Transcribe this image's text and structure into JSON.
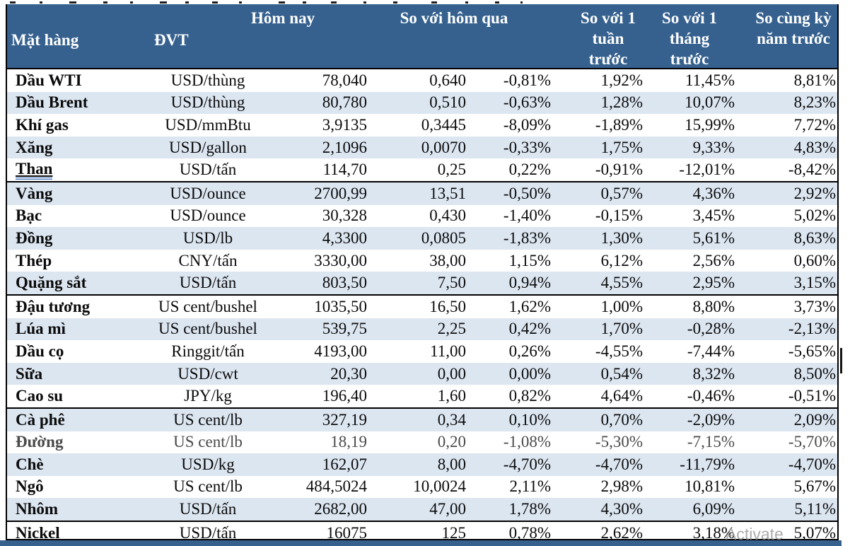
{
  "page": {
    "watermark": "Activate",
    "colors": {
      "header_bg": "#36618F",
      "stripe": "#DCE6F1",
      "border": "#000000",
      "underline_blue": "#3E6DB5",
      "muted_text": "#4a4a4a",
      "watermark_gray": "#9E9E9E"
    }
  },
  "table": {
    "headers": {
      "commodity": "Mặt hàng",
      "unit": "ĐVT",
      "today": "Hôm nay",
      "vs_yesterday": "So với hôm qua",
      "vs_week": "So với 1 tuần trước",
      "vs_month": "So với 1 tháng trước",
      "vs_year": "So cùng kỳ năm trước"
    },
    "rows": [
      {
        "name": "Dầu WTI",
        "unit": "USD/thùng",
        "today": "78,040",
        "change": "0,640",
        "change_pct": "-0,81%",
        "week_pct": "1,92%",
        "month_pct": "11,45%",
        "year_pct": "8,81%"
      },
      {
        "name": "Dầu Brent",
        "unit": "USD/thùng",
        "today": "80,780",
        "change": "0,510",
        "change_pct": "-0,63%",
        "week_pct": "1,28%",
        "month_pct": "10,07%",
        "year_pct": "8,23%"
      },
      {
        "name": "Khí gas",
        "unit": "USD/mmBtu",
        "today": "3,9135",
        "change": "0,3445",
        "change_pct": "-8,09%",
        "week_pct": "-1,89%",
        "month_pct": "15,99%",
        "year_pct": "7,72%"
      },
      {
        "name": "Xăng",
        "unit": "USD/gallon",
        "today": "2,1096",
        "change": "0,0070",
        "change_pct": "-0,33%",
        "week_pct": "1,75%",
        "month_pct": "9,33%",
        "year_pct": "4,83%"
      },
      {
        "name": "Than",
        "unit": "USD/tấn",
        "today": "114,70",
        "change": "0,25",
        "change_pct": "0,22%",
        "week_pct": "-0,91%",
        "month_pct": "-12,01%",
        "year_pct": "-8,42%",
        "underlined": true
      },
      {
        "name": "Vàng",
        "unit": "USD/ounce",
        "today": "2700,99",
        "change": "13,51",
        "change_pct": "-0,50%",
        "week_pct": "0,57%",
        "month_pct": "4,36%",
        "year_pct": "2,92%"
      },
      {
        "name": "Bạc",
        "unit": "USD/ounce",
        "today": "30,328",
        "change": "0,430",
        "change_pct": "-1,40%",
        "week_pct": "-0,15%",
        "month_pct": "3,45%",
        "year_pct": "5,02%"
      },
      {
        "name": "Đồng",
        "unit": "USD/lb",
        "today": "4,3300",
        "change": "0,0805",
        "change_pct": "-1,83%",
        "week_pct": "1,30%",
        "month_pct": "5,61%",
        "year_pct": "8,63%"
      },
      {
        "name": "Thép",
        "unit": "CNY/tấn",
        "today": "3330,00",
        "change": "38,00",
        "change_pct": "1,15%",
        "week_pct": "6,12%",
        "month_pct": "2,56%",
        "year_pct": "0,60%"
      },
      {
        "name": "Quặng sắt",
        "unit": "USD/tấn",
        "today": "803,50",
        "change": "7,50",
        "change_pct": "0,94%",
        "week_pct": "4,55%",
        "month_pct": "2,95%",
        "year_pct": "3,15%"
      },
      {
        "name": "Đậu tương",
        "unit": "US cent/bushel",
        "today": "1035,50",
        "change": "16,50",
        "change_pct": "1,62%",
        "week_pct": "1,00%",
        "month_pct": "8,80%",
        "year_pct": "3,73%"
      },
      {
        "name": "Lúa mì",
        "unit": "US cent/bushel",
        "today": "539,75",
        "change": "2,25",
        "change_pct": "0,42%",
        "week_pct": "1,70%",
        "month_pct": "-0,28%",
        "year_pct": "-2,13%"
      },
      {
        "name": "Dầu cọ",
        "unit": "Ringgit/tấn",
        "today": "4193,00",
        "change": "11,00",
        "change_pct": "0,26%",
        "week_pct": "-4,55%",
        "month_pct": "-7,44%",
        "year_pct": "-5,65%"
      },
      {
        "name": "Sữa",
        "unit": "USD/cwt",
        "today": "20,30",
        "change": "0,00",
        "change_pct": "0,00%",
        "week_pct": "0,54%",
        "month_pct": "8,32%",
        "year_pct": "8,50%"
      },
      {
        "name": "Cao su",
        "unit": "JPY/kg",
        "today": "196,40",
        "change": "1,60",
        "change_pct": "0,82%",
        "week_pct": "4,64%",
        "month_pct": "-0,46%",
        "year_pct": "-0,51%"
      },
      {
        "name": "Cà phê",
        "unit": "US cent/lb",
        "today": "327,19",
        "change": "0,34",
        "change_pct": "0,10%",
        "week_pct": "0,70%",
        "month_pct": "-2,09%",
        "year_pct": "2,09%"
      },
      {
        "name": "Đường",
        "unit": "US cent/lb",
        "today": "18,19",
        "change": "0,20",
        "change_pct": "-1,08%",
        "week_pct": "-5,30%",
        "month_pct": "-7,15%",
        "year_pct": "-5,70%",
        "muted": true
      },
      {
        "name": "Chè",
        "unit": "USD/kg",
        "today": "162,07",
        "change": "8,00",
        "change_pct": "-4,70%",
        "week_pct": "-4,70%",
        "month_pct": "-11,79%",
        "year_pct": "-4,70%"
      },
      {
        "name": "Ngô",
        "unit": "US cent/lb",
        "today": "484,5024",
        "change": "10,0024",
        "change_pct": "2,11%",
        "week_pct": "2,98%",
        "month_pct": "10,81%",
        "year_pct": "5,67%"
      },
      {
        "name": "Nhôm",
        "unit": "USD/tấn",
        "today": "2682,00",
        "change": "47,00",
        "change_pct": "1,78%",
        "week_pct": "4,30%",
        "month_pct": "6,09%",
        "year_pct": "5,11%"
      },
      {
        "name": "Nickel",
        "unit": "USD/tấn",
        "today": "16075",
        "change": "125",
        "change_pct": "0,78%",
        "week_pct": "2,62%",
        "month_pct": "3,18%",
        "year_pct": "5,07%"
      }
    ]
  }
}
